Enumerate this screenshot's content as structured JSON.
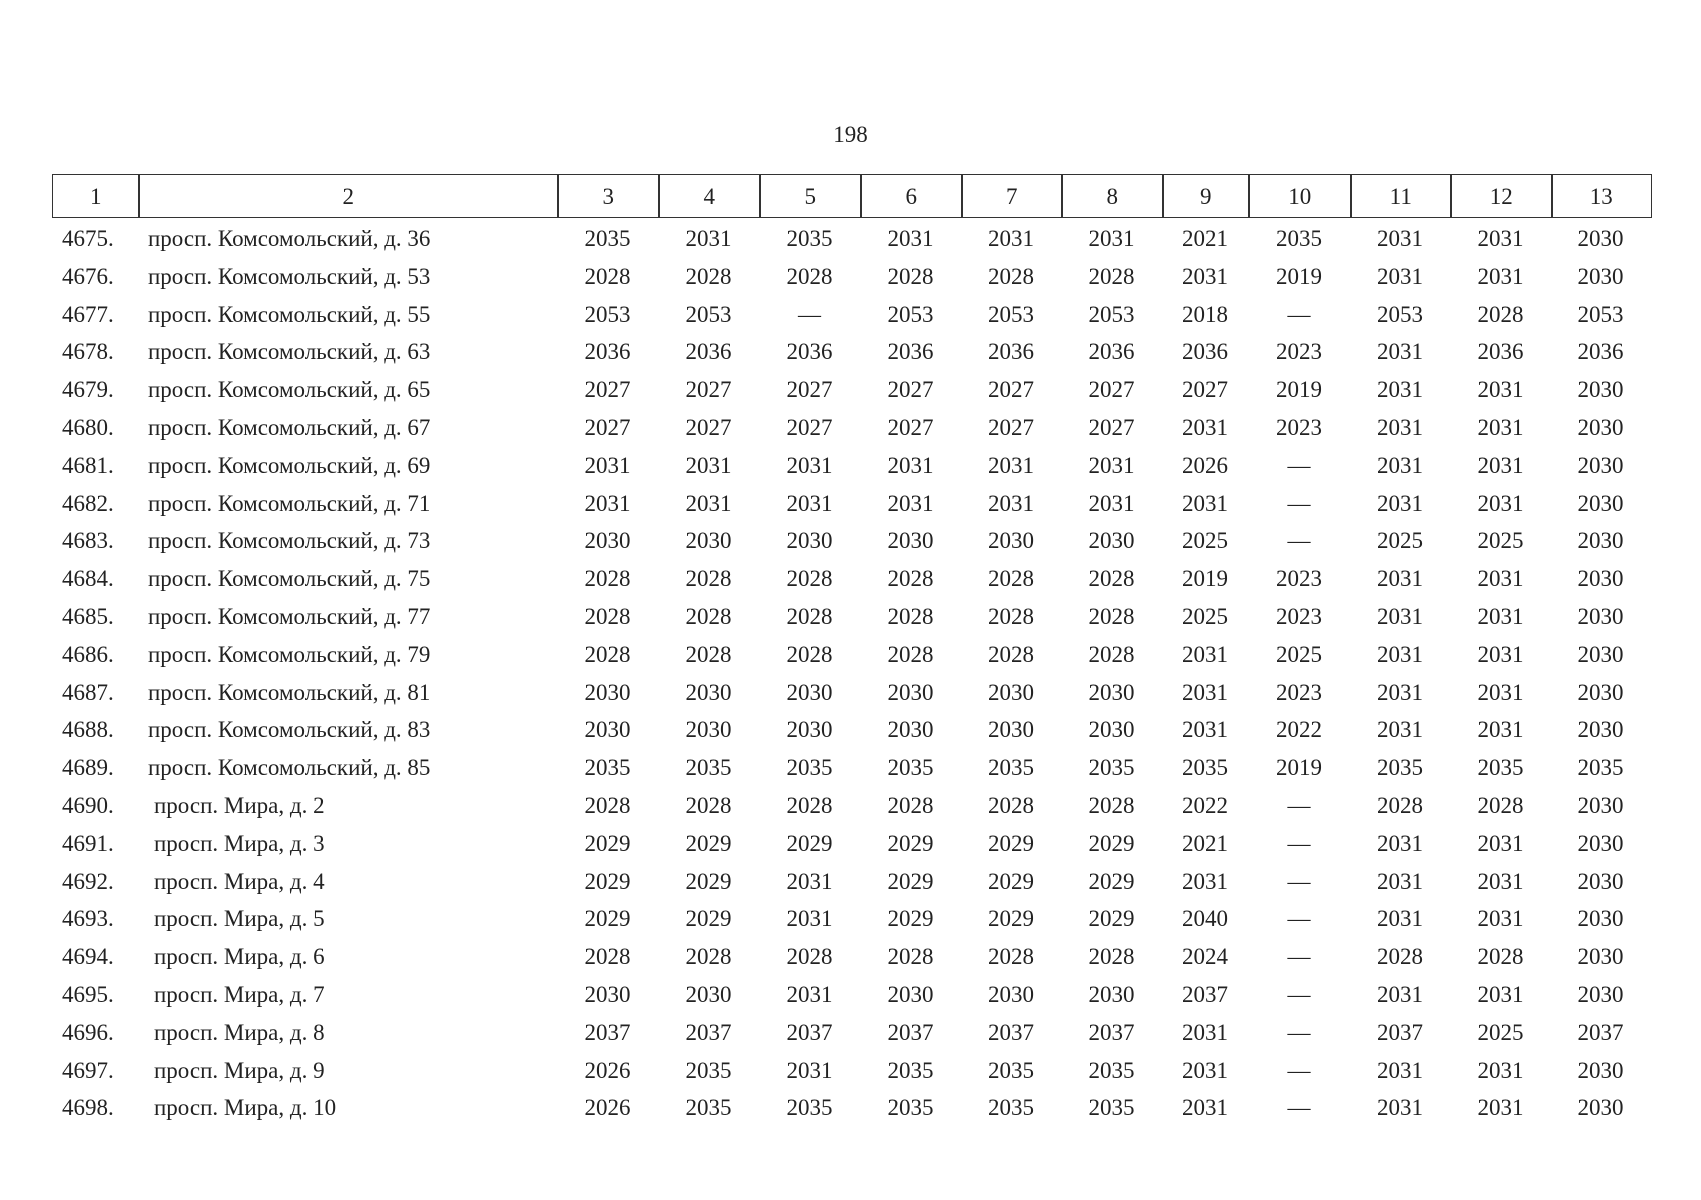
{
  "page_number": "198",
  "table": {
    "header": [
      "1",
      "2",
      "3",
      "4",
      "5",
      "6",
      "7",
      "8",
      "9",
      "10",
      "11",
      "12",
      "13"
    ],
    "rows": [
      [
        "4675.",
        "просп. Комсомольский, д. 36",
        "2035",
        "2031",
        "2035",
        "2031",
        "2031",
        "2031",
        "2021",
        "2035",
        "2031",
        "2031",
        "2030"
      ],
      [
        "4676.",
        "просп. Комсомольский, д. 53",
        "2028",
        "2028",
        "2028",
        "2028",
        "2028",
        "2028",
        "2031",
        "2019",
        "2031",
        "2031",
        "2030"
      ],
      [
        "4677.",
        "просп. Комсомольский, д. 55",
        "2053",
        "2053",
        "—",
        "2053",
        "2053",
        "2053",
        "2018",
        "—",
        "2053",
        "2028",
        "2053"
      ],
      [
        "4678.",
        "просп. Комсомольский, д. 63",
        "2036",
        "2036",
        "2036",
        "2036",
        "2036",
        "2036",
        "2036",
        "2023",
        "2031",
        "2036",
        "2036"
      ],
      [
        "4679.",
        "просп. Комсомольский, д. 65",
        "2027",
        "2027",
        "2027",
        "2027",
        "2027",
        "2027",
        "2027",
        "2019",
        "2031",
        "2031",
        "2030"
      ],
      [
        "4680.",
        "просп. Комсомольский, д. 67",
        "2027",
        "2027",
        "2027",
        "2027",
        "2027",
        "2027",
        "2031",
        "2023",
        "2031",
        "2031",
        "2030"
      ],
      [
        "4681.",
        "просп. Комсомольский, д. 69",
        "2031",
        "2031",
        "2031",
        "2031",
        "2031",
        "2031",
        "2026",
        "—",
        "2031",
        "2031",
        "2030"
      ],
      [
        "4682.",
        "просп. Комсомольский, д. 71",
        "2031",
        "2031",
        "2031",
        "2031",
        "2031",
        "2031",
        "2031",
        "—",
        "2031",
        "2031",
        "2030"
      ],
      [
        "4683.",
        "просп. Комсомольский, д. 73",
        "2030",
        "2030",
        "2030",
        "2030",
        "2030",
        "2030",
        "2025",
        "—",
        "2025",
        "2025",
        "2030"
      ],
      [
        "4684.",
        "просп. Комсомольский, д. 75",
        "2028",
        "2028",
        "2028",
        "2028",
        "2028",
        "2028",
        "2019",
        "2023",
        "2031",
        "2031",
        "2030"
      ],
      [
        "4685.",
        "просп. Комсомольский, д. 77",
        "2028",
        "2028",
        "2028",
        "2028",
        "2028",
        "2028",
        "2025",
        "2023",
        "2031",
        "2031",
        "2030"
      ],
      [
        "4686.",
        "просп. Комсомольский, д. 79",
        "2028",
        "2028",
        "2028",
        "2028",
        "2028",
        "2028",
        "2031",
        "2025",
        "2031",
        "2031",
        "2030"
      ],
      [
        "4687.",
        "просп. Комсомольский, д. 81",
        "2030",
        "2030",
        "2030",
        "2030",
        "2030",
        "2030",
        "2031",
        "2023",
        "2031",
        "2031",
        "2030"
      ],
      [
        "4688.",
        "просп. Комсомольский, д. 83",
        "2030",
        "2030",
        "2030",
        "2030",
        "2030",
        "2030",
        "2031",
        "2022",
        "2031",
        "2031",
        "2030"
      ],
      [
        "4689.",
        "просп. Комсомольский, д. 85",
        "2035",
        "2035",
        "2035",
        "2035",
        "2035",
        "2035",
        "2035",
        "2019",
        "2035",
        "2035",
        "2035"
      ],
      [
        "4690.",
        "просп. Мира, д. 2",
        "2028",
        "2028",
        "2028",
        "2028",
        "2028",
        "2028",
        "2022",
        "—",
        "2028",
        "2028",
        "2030"
      ],
      [
        "4691.",
        "просп. Мира, д. 3",
        "2029",
        "2029",
        "2029",
        "2029",
        "2029",
        "2029",
        "2021",
        "—",
        "2031",
        "2031",
        "2030"
      ],
      [
        "4692.",
        "просп. Мира, д. 4",
        "2029",
        "2029",
        "2031",
        "2029",
        "2029",
        "2029",
        "2031",
        "—",
        "2031",
        "2031",
        "2030"
      ],
      [
        "4693.",
        "просп. Мира, д. 5",
        "2029",
        "2029",
        "2031",
        "2029",
        "2029",
        "2029",
        "2040",
        "—",
        "2031",
        "2031",
        "2030"
      ],
      [
        "4694.",
        "просп. Мира, д. 6",
        "2028",
        "2028",
        "2028",
        "2028",
        "2028",
        "2028",
        "2024",
        "—",
        "2028",
        "2028",
        "2030"
      ],
      [
        "4695.",
        "просп. Мира, д. 7",
        "2030",
        "2030",
        "2031",
        "2030",
        "2030",
        "2030",
        "2037",
        "—",
        "2031",
        "2031",
        "2030"
      ],
      [
        "4696.",
        "просп. Мира, д. 8",
        "2037",
        "2037",
        "2037",
        "2037",
        "2037",
        "2037",
        "2031",
        "—",
        "2037",
        "2025",
        "2037"
      ],
      [
        "4697.",
        "просп. Мира, д. 9",
        "2026",
        "2035",
        "2031",
        "2035",
        "2035",
        "2035",
        "2031",
        "—",
        "2031",
        "2031",
        "2030"
      ],
      [
        "4698.",
        "просп. Мира, д. 10",
        "2026",
        "2035",
        "2035",
        "2035",
        "2035",
        "2035",
        "2031",
        "—",
        "2031",
        "2031",
        "2030"
      ]
    ]
  }
}
